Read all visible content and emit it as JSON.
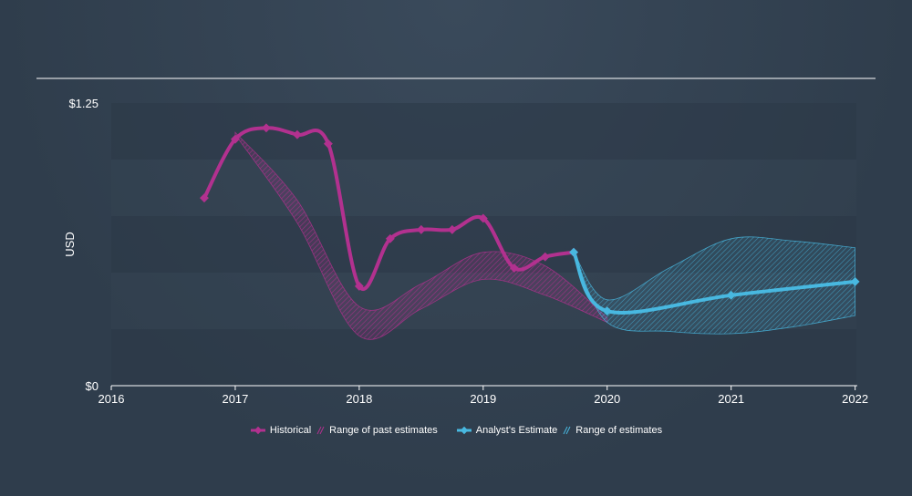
{
  "chart_data": {
    "type": "line",
    "ylabel": "USD",
    "ylim": [
      0,
      1.25
    ],
    "xlim": [
      2016,
      2022.01
    ],
    "y_tick_labels": [
      {
        "value": 1.25,
        "label": "$1.25"
      },
      {
        "value": 0,
        "label": "$0"
      }
    ],
    "x_ticks": [
      {
        "value": 2016,
        "label": "2016"
      },
      {
        "value": 2017,
        "label": "2017"
      },
      {
        "value": 2018,
        "label": "2018"
      },
      {
        "value": 2019,
        "label": "2019"
      },
      {
        "value": 2020,
        "label": "2020"
      },
      {
        "value": 2021,
        "label": "2021"
      },
      {
        "value": 2022,
        "label": "2022"
      }
    ],
    "series": [
      {
        "name": "Historical",
        "color": "#b2318f",
        "points": [
          [
            2016.75,
            0.83
          ],
          [
            2017.0,
            1.09
          ],
          [
            2017.25,
            1.14
          ],
          [
            2017.5,
            1.11
          ],
          [
            2017.75,
            1.07
          ],
          [
            2018.0,
            0.44
          ],
          [
            2018.25,
            0.65
          ],
          [
            2018.5,
            0.69
          ],
          [
            2018.75,
            0.69
          ],
          [
            2019.0,
            0.74
          ],
          [
            2019.25,
            0.52
          ],
          [
            2019.5,
            0.57
          ],
          [
            2019.73,
            0.59
          ]
        ]
      },
      {
        "name": "Analyst's Estimate",
        "color": "#48b8e0",
        "points": [
          [
            2019.73,
            0.59
          ],
          [
            2020.0,
            0.33
          ],
          [
            2021.0,
            0.4
          ],
          [
            2022.0,
            0.46
          ]
        ]
      }
    ],
    "ranges": [
      {
        "name": "Range of past estimates",
        "color": "#b2318f",
        "upper": [
          [
            2017.0,
            1.12
          ],
          [
            2017.5,
            0.82
          ],
          [
            2018.0,
            0.35
          ],
          [
            2018.5,
            0.45
          ],
          [
            2019.0,
            0.59
          ],
          [
            2019.5,
            0.53
          ],
          [
            2020.0,
            0.3
          ]
        ],
        "lower": [
          [
            2017.0,
            1.11
          ],
          [
            2017.5,
            0.72
          ],
          [
            2018.0,
            0.22
          ],
          [
            2018.5,
            0.34
          ],
          [
            2019.0,
            0.47
          ],
          [
            2019.5,
            0.4
          ],
          [
            2020.0,
            0.28
          ]
        ]
      },
      {
        "name": "Range of estimates",
        "color": "#48b8e0",
        "upper": [
          [
            2019.73,
            0.59
          ],
          [
            2020.0,
            0.38
          ],
          [
            2020.5,
            0.52
          ],
          [
            2021.0,
            0.65
          ],
          [
            2021.5,
            0.64
          ],
          [
            2022.0,
            0.61
          ]
        ],
        "lower": [
          [
            2019.73,
            0.59
          ],
          [
            2020.0,
            0.28
          ],
          [
            2020.5,
            0.24
          ],
          [
            2021.0,
            0.23
          ],
          [
            2021.5,
            0.26
          ],
          [
            2022.0,
            0.31
          ]
        ]
      }
    ]
  },
  "legend": {
    "historical": "Historical",
    "past_range": "Range of past estimates",
    "analyst": "Analyst's Estimate",
    "estimate_range": "Range of estimates"
  },
  "colors": {
    "historical": "#b2318f",
    "analyst": "#48b8e0"
  }
}
